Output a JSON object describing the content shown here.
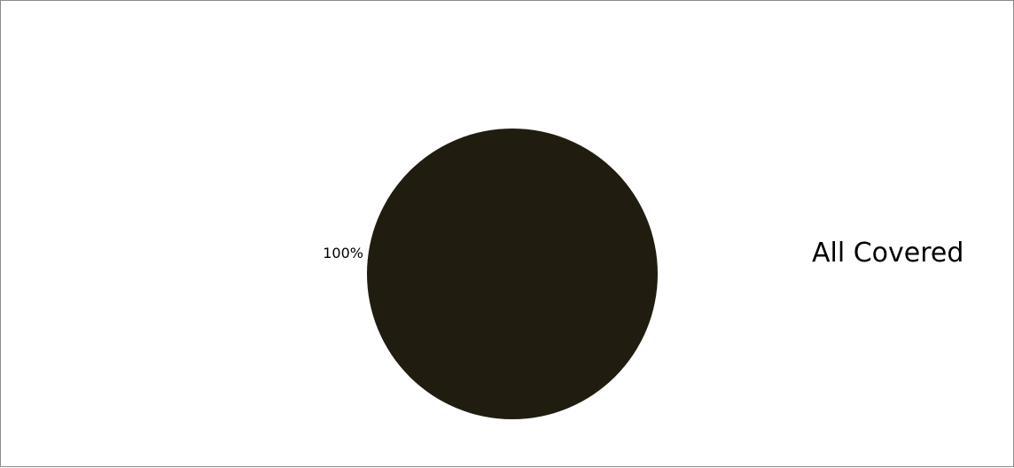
{
  "chart_data": {
    "type": "pie",
    "title": "",
    "slices": [
      {
        "label": "All Covered",
        "value": 100,
        "data_label": "100%",
        "color": "#201d10"
      }
    ],
    "legend": {
      "placement": "right",
      "entries": [
        "All Covered"
      ]
    }
  }
}
